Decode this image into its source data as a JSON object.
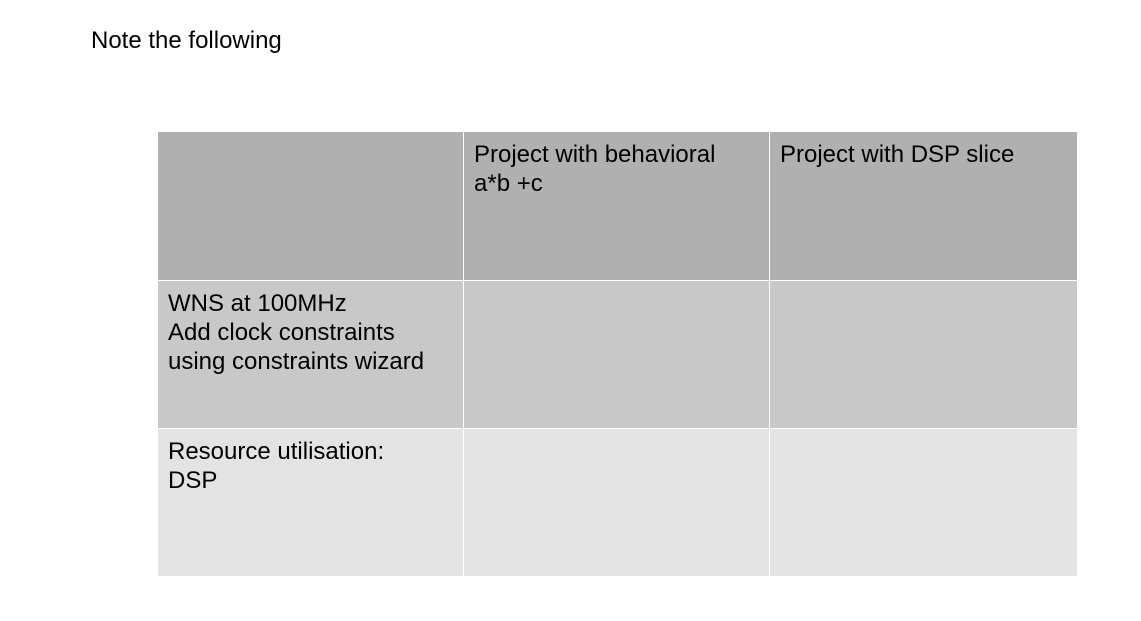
{
  "heading": "Note the following",
  "table": {
    "header_row": [
      "",
      "Project with behavioral\na*b +c",
      "Project with DSP slice"
    ],
    "rows": [
      {
        "label": "WNS at 100MHz\nAdd clock constraints\nusing constraints wizard",
        "values": [
          "",
          ""
        ]
      },
      {
        "label": "Resource utilisation:\nDSP",
        "values": [
          "",
          ""
        ]
      }
    ]
  },
  "colors": {
    "header_row_bg": "#b0b0b0",
    "wns_row_bg": "#c8c8c8",
    "resource_row_bg": "#e3e3e3"
  }
}
